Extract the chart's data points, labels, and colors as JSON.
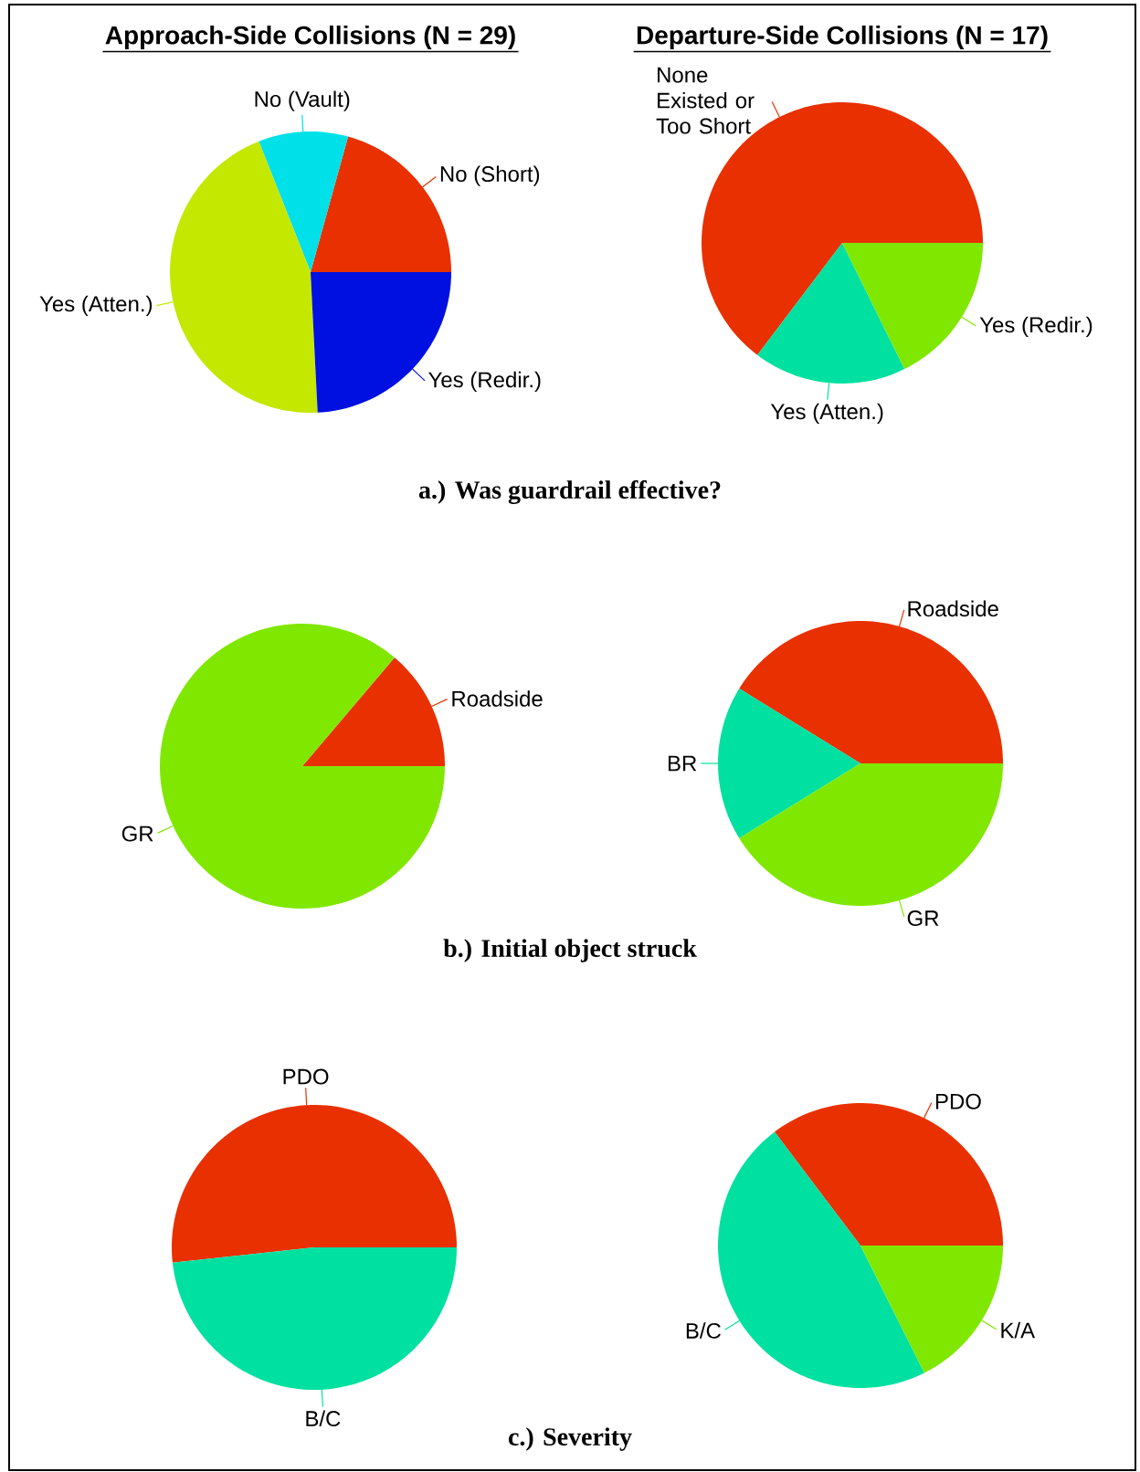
{
  "chart_data": [
    {
      "type": "pie",
      "title": "Approach-Side Collisions (N = 29)",
      "categories": [
        "No (Short)",
        "No (Vault)",
        "Yes (Atten.)",
        "Yes (Redir.)"
      ],
      "values": [
        20.7,
        10.3,
        44.8,
        24.2
      ],
      "colors": [
        "#e83000",
        "#00e0e8",
        "#c4e800",
        "#0010e0"
      ]
    },
    {
      "type": "pie",
      "title": "Departure-Side Collisions (N = 17)",
      "categories": [
        "None Existed or Too Short",
        "Yes (Atten.)",
        "Yes (Redir.)"
      ],
      "values": [
        64.7,
        17.6,
        17.7
      ],
      "colors": [
        "#e83000",
        "#00e0a0",
        "#80e800"
      ],
      "annotations": [
        "a.) Was guardrail effective?"
      ]
    },
    {
      "type": "pie",
      "categories": [
        "Roadside",
        "GR"
      ],
      "values": [
        13.8,
        86.2
      ],
      "colors": [
        "#e83000",
        "#80e800"
      ]
    },
    {
      "type": "pie",
      "categories": [
        "Roadside",
        "BR",
        "GR"
      ],
      "values": [
        41.2,
        17.6,
        41.2
      ],
      "colors": [
        "#e83000",
        "#00e0a0",
        "#80e800"
      ],
      "annotations": [
        "b.) Initial object struck"
      ]
    },
    {
      "type": "pie",
      "categories": [
        "PDO",
        "B/C"
      ],
      "values": [
        51.7,
        48.3
      ],
      "colors": [
        "#e83000",
        "#00e0a0"
      ]
    },
    {
      "type": "pie",
      "categories": [
        "PDO",
        "B/C",
        "K/A"
      ],
      "values": [
        35.3,
        47.1,
        17.6
      ],
      "colors": [
        "#e83000",
        "#00e0a0",
        "#80e800"
      ],
      "annotations": [
        "c.) Severity"
      ]
    }
  ]
}
